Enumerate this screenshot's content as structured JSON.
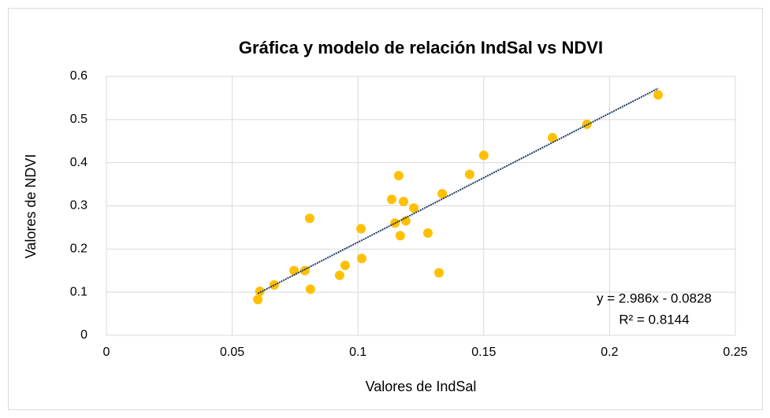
{
  "chart_data": {
    "type": "scatter",
    "title": "Gráfica y modelo de relación IndSal vs NDVI",
    "x_label": "Valores de IndSal",
    "y_label": "Valores de NDVI",
    "x": [
      0.0602,
      0.061,
      0.0667,
      0.0746,
      0.0789,
      0.0808,
      0.0811,
      0.0927,
      0.0949,
      0.1012,
      0.1015,
      0.1134,
      0.1147,
      0.1162,
      0.1168,
      0.1181,
      0.119,
      0.1222,
      0.1278,
      0.1322,
      0.1335,
      0.1444,
      0.15,
      0.1773,
      0.191,
      0.2193
    ],
    "values": [
      0.083,
      0.102,
      0.117,
      0.15,
      0.15,
      0.271,
      0.107,
      0.139,
      0.162,
      0.247,
      0.178,
      0.315,
      0.26,
      0.37,
      0.231,
      0.31,
      0.265,
      0.295,
      0.237,
      0.145,
      0.328,
      0.373,
      0.417,
      0.458,
      0.489,
      0.557
    ],
    "color": "#ffc000",
    "trendline": {
      "slope": 2.986,
      "intercept": -0.0828,
      "color": "#1f3864",
      "label": "y = 2.986x - 0.0828",
      "r2_label": "R² = 0.8144"
    },
    "xlim": [
      0,
      0.25
    ],
    "xticks": [
      0,
      0.05,
      0.1,
      0.15,
      0.2,
      0.25
    ],
    "ylim": [
      0,
      0.6
    ],
    "yticks": [
      0,
      0.1,
      0.2,
      0.3,
      0.4,
      0.5,
      0.6
    ],
    "grid": true
  }
}
